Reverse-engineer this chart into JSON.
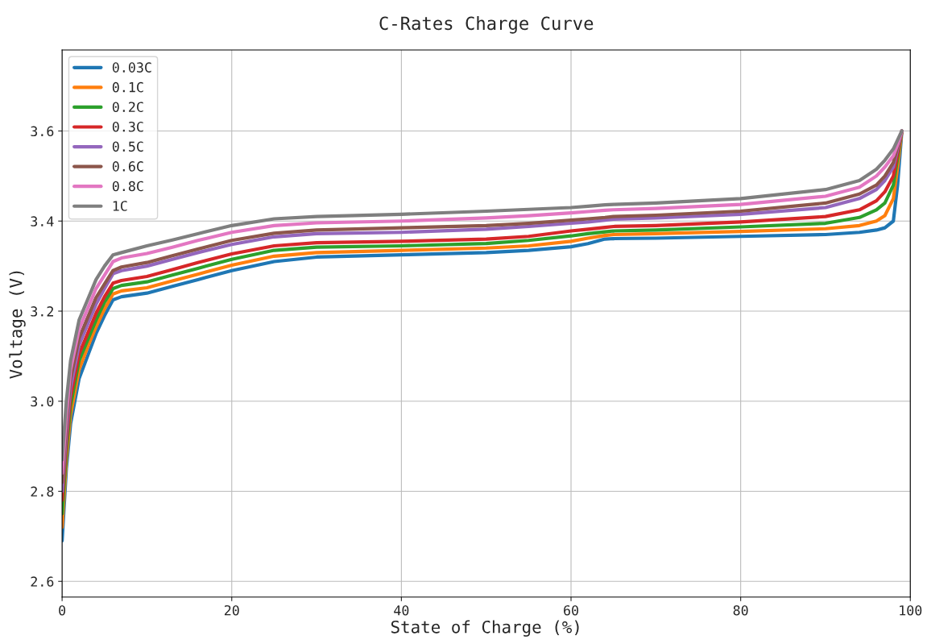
{
  "chart_data": {
    "type": "line",
    "title": "C-Rates Charge Curve",
    "xlabel": "State of Charge (%)",
    "ylabel": "Voltage (V)",
    "x": [
      0,
      0.5,
      1,
      2,
      3,
      4,
      5,
      6,
      7,
      10,
      13,
      16,
      20,
      25,
      30,
      40,
      50,
      55,
      60,
      62,
      64,
      65,
      70,
      80,
      90,
      94,
      96,
      97,
      98,
      98.5,
      99
    ],
    "series": [
      {
        "name": "0.03C",
        "color": "#1f77b4",
        "values": [
          2.69,
          2.85,
          2.95,
          3.05,
          3.1,
          3.15,
          3.19,
          3.225,
          3.232,
          3.24,
          3.255,
          3.27,
          3.29,
          3.31,
          3.32,
          3.325,
          3.33,
          3.335,
          3.343,
          3.35,
          3.36,
          3.361,
          3.362,
          3.366,
          3.37,
          3.375,
          3.38,
          3.385,
          3.4,
          3.48,
          3.6
        ]
      },
      {
        "name": "0.1C",
        "color": "#ff7f0e",
        "values": [
          2.72,
          2.87,
          2.97,
          3.07,
          3.12,
          3.165,
          3.205,
          3.238,
          3.245,
          3.252,
          3.267,
          3.282,
          3.302,
          3.322,
          3.33,
          3.335,
          3.34,
          3.345,
          3.355,
          3.362,
          3.368,
          3.37,
          3.372,
          3.377,
          3.383,
          3.39,
          3.4,
          3.412,
          3.45,
          3.52,
          3.6
        ]
      },
      {
        "name": "0.2C",
        "color": "#2ca02c",
        "values": [
          2.75,
          2.89,
          2.99,
          3.09,
          3.135,
          3.18,
          3.22,
          3.25,
          3.257,
          3.265,
          3.28,
          3.295,
          3.315,
          3.335,
          3.342,
          3.345,
          3.35,
          3.357,
          3.367,
          3.372,
          3.376,
          3.378,
          3.38,
          3.387,
          3.395,
          3.408,
          3.425,
          3.44,
          3.48,
          3.54,
          3.6
        ]
      },
      {
        "name": "0.3C",
        "color": "#d62728",
        "values": [
          2.78,
          2.91,
          3.01,
          3.105,
          3.15,
          3.195,
          3.232,
          3.262,
          3.268,
          3.277,
          3.292,
          3.308,
          3.327,
          3.345,
          3.352,
          3.355,
          3.36,
          3.366,
          3.378,
          3.382,
          3.386,
          3.388,
          3.39,
          3.398,
          3.41,
          3.425,
          3.445,
          3.465,
          3.5,
          3.55,
          3.6
        ]
      },
      {
        "name": "0.5C",
        "color": "#9467bd",
        "values": [
          2.8,
          2.93,
          3.03,
          3.125,
          3.17,
          3.215,
          3.25,
          3.283,
          3.29,
          3.3,
          3.315,
          3.33,
          3.348,
          3.365,
          3.372,
          3.375,
          3.382,
          3.388,
          3.395,
          3.398,
          3.402,
          3.404,
          3.407,
          3.415,
          3.43,
          3.45,
          3.47,
          3.49,
          3.52,
          3.56,
          3.6
        ]
      },
      {
        "name": "0.6C",
        "color": "#8c564b",
        "values": [
          2.82,
          2.95,
          3.05,
          3.14,
          3.185,
          3.23,
          3.26,
          3.29,
          3.298,
          3.308,
          3.323,
          3.338,
          3.357,
          3.373,
          3.38,
          3.385,
          3.39,
          3.395,
          3.402,
          3.405,
          3.408,
          3.41,
          3.413,
          3.422,
          3.44,
          3.46,
          3.48,
          3.5,
          3.53,
          3.565,
          3.6
        ]
      },
      {
        "name": "0.8C",
        "color": "#e377c2",
        "values": [
          2.84,
          2.97,
          3.07,
          3.16,
          3.205,
          3.25,
          3.28,
          3.31,
          3.318,
          3.328,
          3.342,
          3.357,
          3.375,
          3.39,
          3.396,
          3.4,
          3.407,
          3.412,
          3.418,
          3.421,
          3.424,
          3.425,
          3.428,
          3.437,
          3.455,
          3.475,
          3.5,
          3.52,
          3.545,
          3.57,
          3.6
        ]
      },
      {
        "name": "1C",
        "color": "#7f7f7f",
        "values": [
          2.87,
          3.0,
          3.09,
          3.18,
          3.225,
          3.27,
          3.3,
          3.325,
          3.33,
          3.345,
          3.358,
          3.372,
          3.39,
          3.405,
          3.41,
          3.415,
          3.422,
          3.426,
          3.43,
          3.433,
          3.436,
          3.437,
          3.44,
          3.45,
          3.47,
          3.49,
          3.515,
          3.535,
          3.56,
          3.58,
          3.6
        ]
      }
    ],
    "xlim": [
      0,
      100
    ],
    "xticks": [
      0,
      20,
      40,
      60,
      80,
      100
    ],
    "ylim": [
      2.565,
      3.78
    ],
    "yticks": [
      {
        "value": 2.6,
        "label": "2.6"
      },
      {
        "value": 2.8,
        "label": "2.8"
      },
      {
        "value": 3.0,
        "label": "3.0"
      },
      {
        "value": 3.2,
        "label": "3.2"
      },
      {
        "value": 3.4,
        "label": "3.4"
      },
      {
        "value": 3.6,
        "label": "3.6"
      }
    ],
    "grid": true,
    "legend": "top left",
    "marker": "none",
    "line_style": "solid"
  }
}
